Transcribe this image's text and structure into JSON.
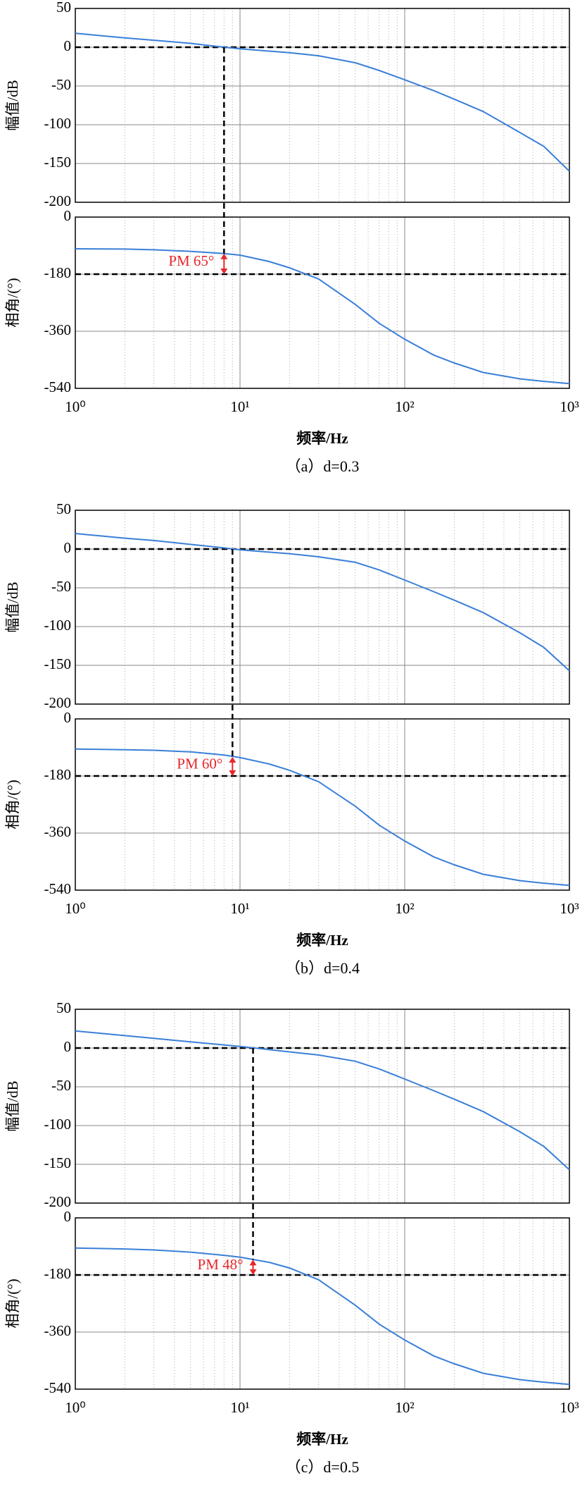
{
  "chart_data": [
    {
      "type": "bode",
      "caption": "（a）d=0.3",
      "xlabel": "频率/Hz",
      "xlim": [
        1,
        1000
      ],
      "xticks": [
        {
          "value": 1,
          "label": "10⁰"
        },
        {
          "value": 10,
          "label": "10¹"
        },
        {
          "value": 100,
          "label": "10²"
        },
        {
          "value": 1000,
          "label": "10³"
        }
      ],
      "x": [
        1,
        2,
        3,
        5,
        8,
        10,
        15,
        20,
        30,
        50,
        70,
        100,
        150,
        200,
        300,
        500,
        700,
        1000
      ],
      "color": "#3a7fd8",
      "marker_color": "#e8262a",
      "grid": true,
      "log_x": true,
      "magnitude": {
        "ylabel": "幅值/dB",
        "ylim": [
          -200,
          50
        ],
        "yticks": [
          -200,
          -150,
          -100,
          -50,
          0,
          50
        ],
        "values": [
          18,
          12,
          9,
          5,
          0,
          -2,
          -5,
          -7,
          -11,
          -20,
          -30,
          -42,
          -56,
          -67,
          -83,
          -110,
          -128,
          -160
        ]
      },
      "phase": {
        "ylabel": "相角/(°)",
        "ylim": [
          -540,
          0
        ],
        "yticks": [
          -540,
          -360,
          -180,
          0
        ],
        "values": [
          -100,
          -101,
          -103,
          -108,
          -115,
          -120,
          -140,
          -160,
          -195,
          -275,
          -335,
          -385,
          -435,
          -460,
          -490,
          -510,
          -518,
          -525
        ]
      },
      "crossover": 8,
      "reference_magnitude": 0,
      "reference_phase": -180,
      "phase_margin": 65,
      "pm_label": "PM 65°"
    },
    {
      "type": "bode",
      "caption": "（b）d=0.4",
      "xlabel": "频率/Hz",
      "xlim": [
        1,
        1000
      ],
      "xticks": [
        {
          "value": 1,
          "label": "10⁰"
        },
        {
          "value": 10,
          "label": "10¹"
        },
        {
          "value": 100,
          "label": "10²"
        },
        {
          "value": 1000,
          "label": "10³"
        }
      ],
      "x": [
        1,
        2,
        3,
        5,
        8,
        10,
        15,
        20,
        30,
        50,
        70,
        100,
        150,
        200,
        300,
        500,
        700,
        1000
      ],
      "color": "#3a7fd8",
      "marker_color": "#e8262a",
      "grid": true,
      "log_x": true,
      "magnitude": {
        "ylabel": "幅值/dB",
        "ylim": [
          -200,
          50
        ],
        "yticks": [
          -200,
          -150,
          -100,
          -50,
          0,
          50
        ],
        "values": [
          20,
          14,
          11,
          6,
          1.5,
          -1,
          -4,
          -6,
          -10,
          -17,
          -27,
          -40,
          -55,
          -66,
          -82,
          -108,
          -127,
          -157
        ]
      },
      "phase": {
        "ylabel": "相角/(°)",
        "ylim": [
          -540,
          0
        ],
        "yticks": [
          -540,
          -360,
          -180,
          0
        ],
        "values": [
          -95,
          -97,
          -99,
          -104,
          -114,
          -122,
          -142,
          -162,
          -198,
          -275,
          -335,
          -385,
          -435,
          -460,
          -490,
          -510,
          -518,
          -525
        ]
      },
      "crossover": 9,
      "reference_magnitude": 0,
      "reference_phase": -180,
      "phase_margin": 60,
      "pm_label": "PM 60°"
    },
    {
      "type": "bode",
      "caption": "（c）d=0.5",
      "xlabel": "频率/Hz",
      "xlim": [
        1,
        1000
      ],
      "xticks": [
        {
          "value": 1,
          "label": "10⁰"
        },
        {
          "value": 10,
          "label": "10¹"
        },
        {
          "value": 100,
          "label": "10²"
        },
        {
          "value": 1000,
          "label": "10³"
        }
      ],
      "x": [
        1,
        2,
        3,
        5,
        8,
        10,
        15,
        20,
        30,
        50,
        70,
        100,
        150,
        200,
        300,
        500,
        700,
        1000
      ],
      "color": "#3a7fd8",
      "marker_color": "#e8262a",
      "grid": true,
      "log_x": true,
      "magnitude": {
        "ylabel": "幅值/dB",
        "ylim": [
          -200,
          50
        ],
        "yticks": [
          -200,
          -150,
          -100,
          -50,
          0,
          50
        ],
        "values": [
          22,
          16,
          12.5,
          8,
          4,
          2,
          -2,
          -5,
          -9,
          -17,
          -27,
          -40,
          -55,
          -66,
          -82,
          -108,
          -127,
          -157
        ]
      },
      "phase": {
        "ylabel": "相角/(°)",
        "ylim": [
          -540,
          0
        ],
        "yticks": [
          -540,
          -360,
          -180,
          0
        ],
        "values": [
          -95,
          -98,
          -101,
          -108,
          -118,
          -124,
          -140,
          -158,
          -195,
          -275,
          -335,
          -385,
          -435,
          -460,
          -490,
          -510,
          -518,
          -525
        ]
      },
      "crossover": 12,
      "reference_magnitude": 0,
      "reference_phase": -180,
      "phase_margin": 48,
      "pm_label": "PM 48°"
    }
  ]
}
